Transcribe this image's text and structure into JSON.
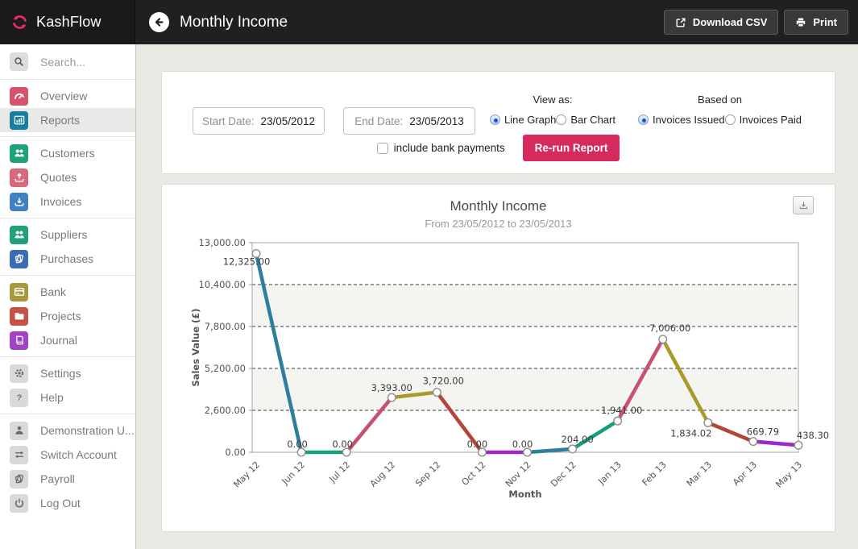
{
  "topbar": {
    "brand": "KashFlow",
    "title": "Monthly Income",
    "download_csv_label": "Download CSV",
    "print_label": "Print"
  },
  "colors": {
    "brand_pink": "#ee2a67",
    "topbar_bg": "#201f22",
    "main_bg": "#eae8e2",
    "rerun_button": "#d62a5e",
    "radio_selected_blue": "#1a57c2"
  },
  "sidebar": {
    "search_placeholder": "Search...",
    "groups": [
      [
        {
          "label": "Overview",
          "icon": "gauge-icon",
          "color": "#d6536b",
          "glyph": "#ffffff",
          "selected": false
        },
        {
          "label": "Reports",
          "icon": "bar-chart-icon",
          "color": "#1a7f9e",
          "glyph": "#ffffff",
          "selected": true
        }
      ],
      [
        {
          "label": "Customers",
          "icon": "people-icon",
          "color": "#21a17a",
          "glyph": "#ffffff",
          "selected": false
        },
        {
          "label": "Quotes",
          "icon": "tray-up-icon",
          "color": "#d8697a",
          "glyph": "#ffffff",
          "selected": false
        },
        {
          "label": "Invoices",
          "icon": "tray-down-icon",
          "color": "#4180c2",
          "glyph": "#ffffff",
          "selected": false
        }
      ],
      [
        {
          "label": "Suppliers",
          "icon": "people-icon",
          "color": "#21a17a",
          "glyph": "#ffffff",
          "selected": false
        },
        {
          "label": "Purchases",
          "icon": "sheets-icon",
          "color": "#3a6db4",
          "glyph": "#ffffff",
          "selected": false
        }
      ],
      [
        {
          "label": "Bank",
          "icon": "bank-card-icon",
          "color": "#a79a3d",
          "glyph": "#ffffff",
          "selected": false
        },
        {
          "label": "Projects",
          "icon": "folder-icon",
          "color": "#c85147",
          "glyph": "#ffffff",
          "selected": false
        },
        {
          "label": "Journal",
          "icon": "book-icon",
          "color": "#a242c5",
          "glyph": "#ffffff",
          "selected": false
        }
      ],
      [
        {
          "label": "Settings",
          "icon": "gear-icon",
          "color": "#d9d9d9",
          "glyph": "#6c6c6c",
          "selected": false
        },
        {
          "label": "Help",
          "icon": "question-icon",
          "color": "#d9d9d9",
          "glyph": "#6c6c6c",
          "selected": false
        }
      ],
      [
        {
          "label": "Demonstration U...",
          "icon": "user-icon",
          "color": "#d9d9d9",
          "glyph": "#6c6c6c",
          "selected": false
        },
        {
          "label": "Switch Account",
          "icon": "swap-arrows-icon",
          "color": "#d9d9d9",
          "glyph": "#6c6c6c",
          "selected": false
        },
        {
          "label": "Payroll",
          "icon": "sheets-icon",
          "color": "#d9d9d9",
          "glyph": "#6c6c6c",
          "selected": false
        },
        {
          "label": "Log Out",
          "icon": "power-icon",
          "color": "#d9d9d9",
          "glyph": "#6c6c6c",
          "selected": false
        }
      ]
    ]
  },
  "filters": {
    "start_date_label": "Start Date:",
    "start_date_value": "23/05/2012",
    "end_date_label": "End Date:",
    "end_date_value": "23/05/2013",
    "view_as_label": "View as:",
    "view_as_options": [
      {
        "label": "Line Graph",
        "selected": true
      },
      {
        "label": "Bar Chart",
        "selected": false
      }
    ],
    "based_on_label": "Based on",
    "based_on_options": [
      {
        "label": "Invoices Issued",
        "selected": true
      },
      {
        "label": "Invoices Paid",
        "selected": false
      }
    ],
    "include_bank_payments_label": "include bank payments",
    "include_bank_payments_checked": false,
    "rerun_button_label": "Re-run Report"
  },
  "chart_data": {
    "type": "line",
    "title": "Monthly Income",
    "subtitle": "From 23/05/2012 to 23/05/2013",
    "xlabel": "Month",
    "ylabel": "Sales Value (£)",
    "categories": [
      "May 12",
      "Jun 12",
      "Jul 12",
      "Aug 12",
      "Sep 12",
      "Oct 12",
      "Nov 12",
      "Dec 12",
      "Jan 13",
      "Feb 13",
      "Mar 13",
      "Apr 13",
      "May 13"
    ],
    "values": [
      12325,
      0,
      0,
      3393,
      3720,
      0,
      0,
      204,
      1941,
      7006,
      1834.02,
      669.79,
      438.3
    ],
    "value_labels": [
      "12,325.00",
      "0.00",
      "0.00",
      "3,393.00",
      "3,720.00",
      "0.00",
      "0.00",
      "204.00",
      "1,941.00",
      "7,006.00",
      "1,834.02",
      "669.79",
      "438.30"
    ],
    "ylim": [
      0,
      13000
    ],
    "ytick_labels": [
      "0.00",
      "2,600.00",
      "5,200.00",
      "7,800.00",
      "10,400.00",
      "13,000.00"
    ],
    "segment_colors": [
      "#2d7f9d",
      "#169e7f",
      "#c9506e",
      "#a89a2b",
      "#b5443b",
      "#9e27c9"
    ],
    "grid": "dashed horizontal, alternating bands",
    "legend": "none"
  }
}
